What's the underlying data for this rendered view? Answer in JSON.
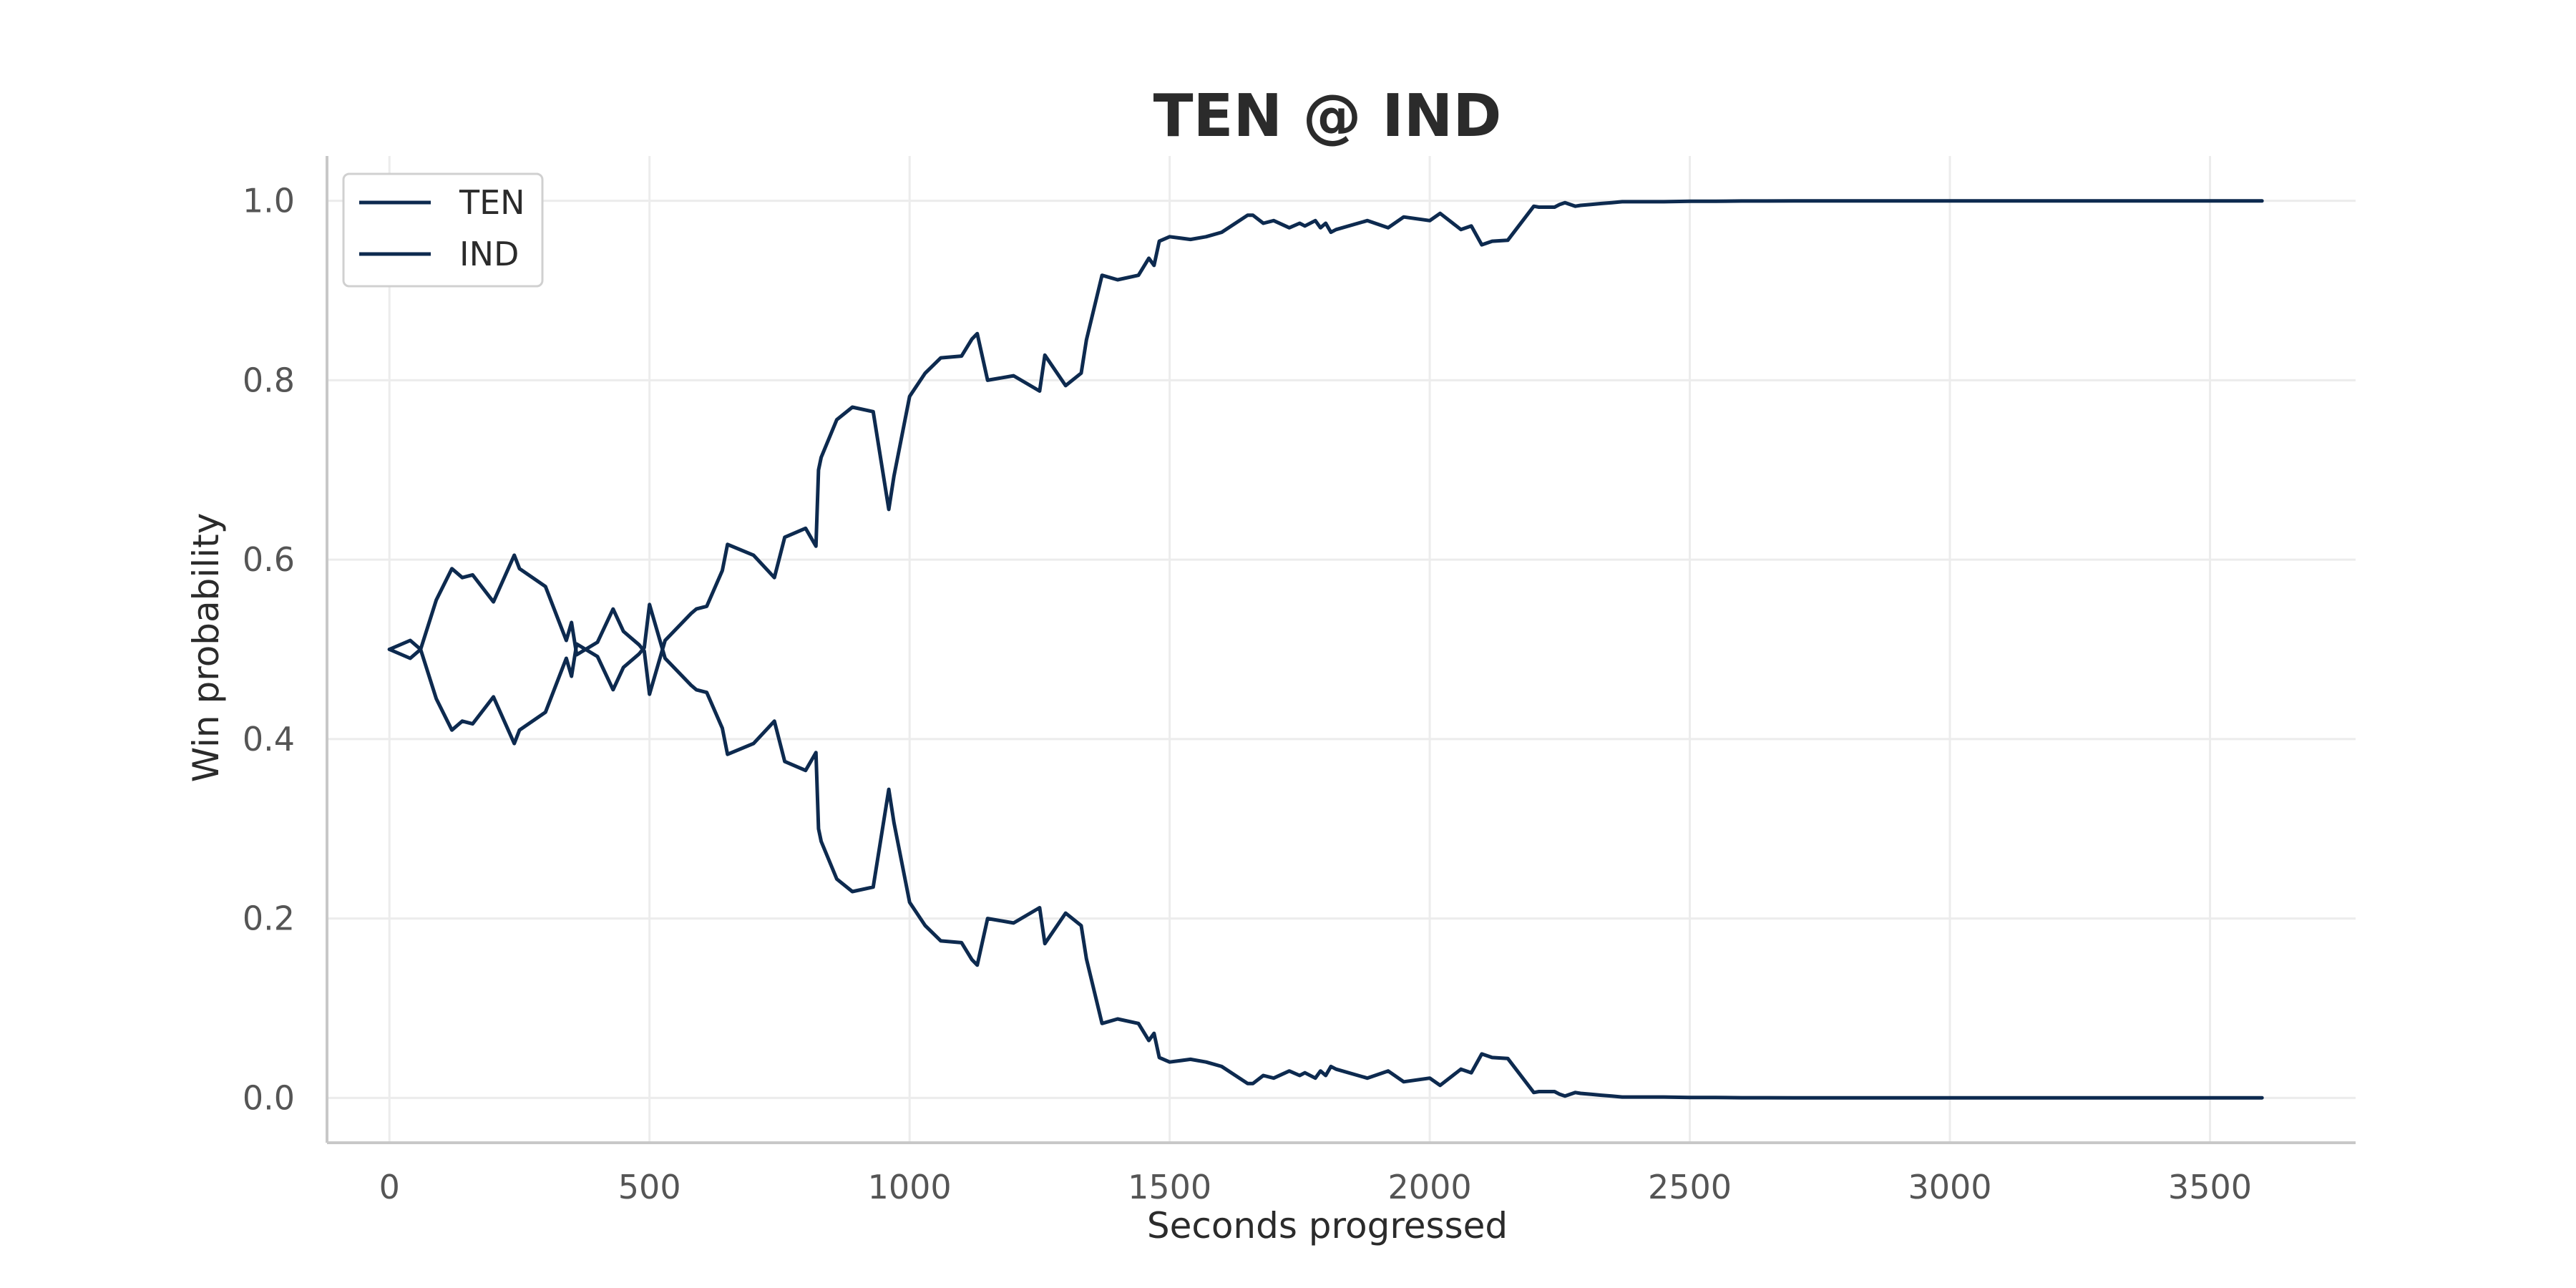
{
  "chart_data": {
    "type": "line",
    "title": "TEN @ IND",
    "xlabel": "Seconds progressed",
    "ylabel": "Win probability",
    "xlim": [
      -120,
      3780
    ],
    "ylim": [
      -0.05,
      1.05
    ],
    "xticks": [
      0,
      500,
      1000,
      1500,
      2000,
      2500,
      3000,
      3500
    ],
    "yticks": [
      0.0,
      0.2,
      0.4,
      0.6,
      0.8,
      1.0
    ],
    "xtick_labels": [
      "0",
      "500",
      "1000",
      "1500",
      "2000",
      "2500",
      "3000",
      "3500"
    ],
    "ytick_labels": [
      "0.0",
      "0.2",
      "0.4",
      "0.6",
      "0.8",
      "1.0"
    ],
    "grid": true,
    "legend_position": "top-left",
    "series": [
      {
        "name": "TEN",
        "color": "#0d2a4f",
        "x": [
          0,
          40,
          60,
          90,
          120,
          140,
          160,
          200,
          240,
          250,
          300,
          330,
          340,
          350,
          360,
          400,
          430,
          450,
          480,
          490,
          500,
          530,
          580,
          590,
          610,
          640,
          650,
          700,
          740,
          760,
          800,
          820,
          825,
          830,
          860,
          890,
          930,
          960,
          970,
          1000,
          1030,
          1060,
          1100,
          1120,
          1130,
          1150,
          1200,
          1250,
          1260,
          1300,
          1330,
          1340,
          1370,
          1400,
          1440,
          1460,
          1470,
          1480,
          1500,
          1540,
          1570,
          1600,
          1650,
          1660,
          1680,
          1700,
          1730,
          1750,
          1760,
          1780,
          1790,
          1800,
          1810,
          1820,
          1880,
          1920,
          1950,
          2000,
          2020,
          2060,
          2080,
          2100,
          2120,
          2150,
          2200,
          2210,
          2240,
          2250,
          2260,
          2280,
          2290,
          2310,
          2330,
          2350,
          2370,
          2400,
          2450,
          2500,
          2550,
          2600,
          2650,
          2700,
          2800,
          2900,
          3000,
          3100,
          3200,
          3300,
          3400,
          3500,
          3550,
          3600
        ],
        "y": [
          0.5,
          0.49,
          0.5,
          0.555,
          0.59,
          0.58,
          0.583,
          0.553,
          0.605,
          0.59,
          0.57,
          0.525,
          0.51,
          0.53,
          0.494,
          0.508,
          0.545,
          0.52,
          0.505,
          0.498,
          0.45,
          0.51,
          0.54,
          0.545,
          0.548,
          0.588,
          0.617,
          0.605,
          0.58,
          0.625,
          0.635,
          0.615,
          0.7,
          0.714,
          0.756,
          0.77,
          0.765,
          0.656,
          0.693,
          0.782,
          0.808,
          0.825,
          0.827,
          0.846,
          0.852,
          0.8,
          0.805,
          0.788,
          0.828,
          0.794,
          0.808,
          0.845,
          0.917,
          0.912,
          0.917,
          0.936,
          0.928,
          0.955,
          0.96,
          0.957,
          0.96,
          0.965,
          0.984,
          0.984,
          0.975,
          0.978,
          0.97,
          0.975,
          0.972,
          0.978,
          0.97,
          0.975,
          0.965,
          0.968,
          0.978,
          0.97,
          0.982,
          0.978,
          0.986,
          0.968,
          0.972,
          0.951,
          0.955,
          0.956,
          0.994,
          0.993,
          0.993,
          0.996,
          0.998,
          0.994,
          0.995,
          0.996,
          0.997,
          0.998,
          0.999,
          0.999,
          0.999,
          0.9995,
          0.9995,
          0.9998,
          0.9998,
          0.9999,
          0.9999,
          0.9999,
          0.9999,
          0.9999,
          0.9999,
          0.9999,
          0.9999,
          0.9999,
          0.9999,
          0.9999
        ]
      },
      {
        "name": "IND",
        "color": "#0d2a4f",
        "x": [
          0,
          40,
          60,
          90,
          120,
          140,
          160,
          200,
          240,
          250,
          300,
          330,
          340,
          350,
          360,
          400,
          430,
          450,
          480,
          490,
          500,
          530,
          580,
          590,
          610,
          640,
          650,
          700,
          740,
          760,
          800,
          820,
          825,
          830,
          860,
          890,
          930,
          960,
          970,
          1000,
          1030,
          1060,
          1100,
          1120,
          1130,
          1150,
          1200,
          1250,
          1260,
          1300,
          1330,
          1340,
          1370,
          1400,
          1440,
          1460,
          1470,
          1480,
          1500,
          1540,
          1570,
          1600,
          1650,
          1660,
          1680,
          1700,
          1730,
          1750,
          1760,
          1780,
          1790,
          1800,
          1810,
          1820,
          1880,
          1920,
          1950,
          2000,
          2020,
          2060,
          2080,
          2100,
          2120,
          2150,
          2200,
          2210,
          2240,
          2250,
          2260,
          2280,
          2290,
          2310,
          2330,
          2350,
          2370,
          2400,
          2450,
          2500,
          2550,
          2600,
          2650,
          2700,
          2800,
          2900,
          3000,
          3100,
          3200,
          3300,
          3400,
          3500,
          3550,
          3600
        ],
        "y": [
          0.5,
          0.51,
          0.5,
          0.445,
          0.41,
          0.42,
          0.417,
          0.447,
          0.395,
          0.41,
          0.43,
          0.475,
          0.49,
          0.47,
          0.506,
          0.492,
          0.455,
          0.48,
          0.495,
          0.502,
          0.55,
          0.49,
          0.46,
          0.455,
          0.452,
          0.412,
          0.383,
          0.395,
          0.42,
          0.375,
          0.365,
          0.385,
          0.3,
          0.286,
          0.244,
          0.23,
          0.235,
          0.344,
          0.307,
          0.218,
          0.192,
          0.175,
          0.173,
          0.154,
          0.148,
          0.2,
          0.195,
          0.212,
          0.172,
          0.206,
          0.192,
          0.155,
          0.083,
          0.088,
          0.083,
          0.064,
          0.072,
          0.045,
          0.04,
          0.043,
          0.04,
          0.035,
          0.016,
          0.016,
          0.025,
          0.022,
          0.03,
          0.025,
          0.028,
          0.022,
          0.03,
          0.025,
          0.035,
          0.032,
          0.022,
          0.03,
          0.018,
          0.022,
          0.014,
          0.032,
          0.028,
          0.049,
          0.045,
          0.044,
          0.006,
          0.007,
          0.007,
          0.004,
          0.002,
          0.006,
          0.005,
          0.004,
          0.003,
          0.002,
          0.001,
          0.001,
          0.001,
          0.0005,
          0.0005,
          0.0002,
          0.0002,
          0.0001,
          0.0001,
          0.0001,
          0.0001,
          0.0001,
          0.0001,
          0.0001,
          0.0001,
          0.0001,
          0.0001,
          0.0001
        ]
      }
    ]
  }
}
